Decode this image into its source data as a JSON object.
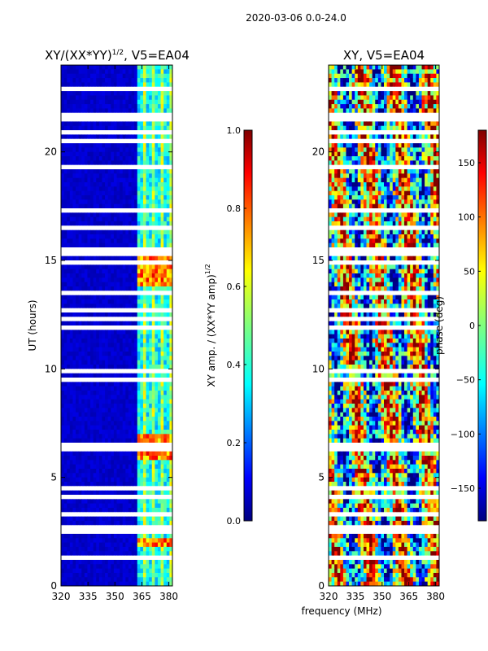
{
  "suptitle": "2020-03-06 0.0-24.0",
  "xlabel": "frequency (MHz)",
  "chart_data": [
    {
      "type": "heatmap",
      "title": "XY/(XX*YY)^{1/2}, V5=EA04",
      "title_main": "XY/(XX*YY)",
      "title_sup": "1/2",
      "title_tail": ", V5=EA04",
      "xlabel": "",
      "ylabel": "UT (hours)",
      "xlim": [
        320,
        382
      ],
      "ylim": [
        0,
        24
      ],
      "xticks": [
        320,
        335,
        350,
        365,
        380
      ],
      "yticks": [
        0,
        5,
        10,
        15,
        20
      ],
      "colormap": "jet",
      "colorbar": {
        "label": "XY amp. / (XX*YY amp)^{1/2}",
        "label_main": "XY amp. / (XX*YY amp)",
        "label_sup": "1/2",
        "range": [
          0,
          1
        ],
        "ticks": [
          0.0,
          0.2,
          0.4,
          0.6,
          0.8,
          1.0
        ],
        "tick_labels": [
          "0.0",
          "0.2",
          "0.4",
          "0.6",
          "0.8",
          "1.0"
        ]
      },
      "description_values": {
        "low_band_level": 0.05,
        "high_band_start_mhz": 362,
        "high_band_level_range": [
          0.3,
          0.75
        ],
        "high_band_peak_hours": [
          [
            1.8,
            2.3
          ],
          [
            5.8,
            7.0
          ],
          [
            13.8,
            15.2
          ]
        ]
      }
    },
    {
      "type": "heatmap",
      "title": "XY, V5=EA04",
      "xlabel": "frequency (MHz)",
      "ylabel": "",
      "xlim": [
        320,
        382
      ],
      "ylim": [
        0,
        24
      ],
      "xticks": [
        320,
        335,
        350,
        365,
        380
      ],
      "yticks": [
        0,
        5,
        10,
        15,
        20
      ],
      "colormap": "jet",
      "colorbar": {
        "label": "phase (deg)",
        "range": [
          -180,
          180
        ],
        "ticks": [
          -150,
          -100,
          -50,
          0,
          50,
          100,
          150
        ],
        "tick_labels": [
          "−150",
          "−100",
          "−50",
          "0",
          "50",
          "100",
          "150"
        ]
      }
    }
  ],
  "colors": {
    "jet": [
      "#00007f",
      "#0000ff",
      "#007fff",
      "#00ffff",
      "#7fff7f",
      "#ffff00",
      "#ff7f00",
      "#ff0000",
      "#7f0000"
    ],
    "gap": "#ffffff",
    "axis": "#000000"
  }
}
